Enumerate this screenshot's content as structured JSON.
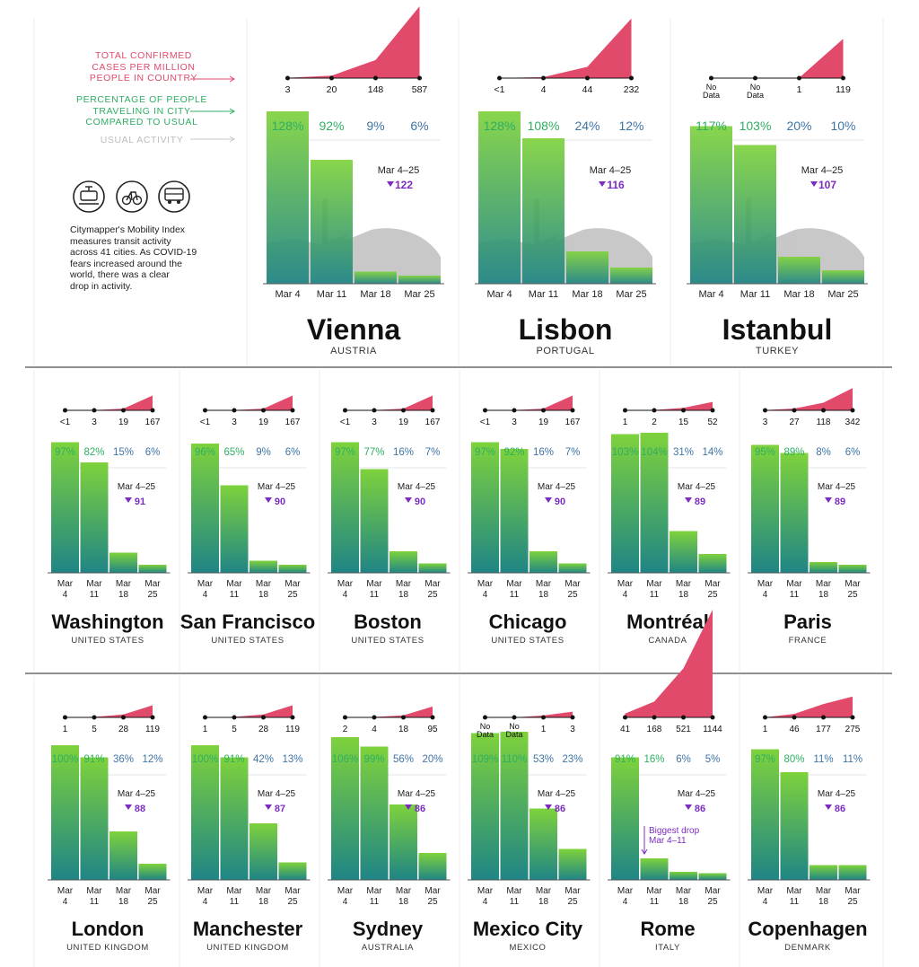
{
  "legend": {
    "cases": [
      "TOTAL CONFIRMED",
      "CASES PER MILLION",
      "PEOPLE IN COUNTRY"
    ],
    "travel": [
      "PERCENTAGE OF PEOPLE",
      "TRAVELING IN CITY",
      "COMPARED TO USUAL"
    ],
    "usual": "USUAL ACTIVITY",
    "description": [
      "Citymapper's Mobility Index",
      "measures transit activity",
      "across 41 cities. As COVID-19",
      "fears increased around the",
      "world, there was a clear",
      "drop in activity."
    ],
    "icons": [
      "tram-icon",
      "bicycle-icon",
      "bus-icon"
    ]
  },
  "colors": {
    "cases": "#e24a6c",
    "bar_top": "#7ed23c",
    "bar_bottom": "#1f8585",
    "drop": "#7b2cbf",
    "pct_green": "#2fae63",
    "pct_blue": "#3f74a5"
  },
  "chart_data": {
    "type": "bar",
    "description": "Citymapper Mobility Index: % of usual transit activity per week, with total confirmed COVID-19 cases per million people in country",
    "categories": [
      "Mar 4",
      "Mar 11",
      "Mar 18",
      "Mar 25"
    ],
    "change_label": "Mar 4–25",
    "cities": [
      {
        "city": "Vienna",
        "country": "AUSTRIA",
        "cases": [
          "3",
          "20",
          "148",
          "587"
        ],
        "cases_values": [
          3,
          20,
          148,
          587
        ],
        "pct": [
          128,
          92,
          9,
          6
        ],
        "drop": 122
      },
      {
        "city": "Lisbon",
        "country": "PORTUGAL",
        "cases": [
          "<1",
          "4",
          "44",
          "232"
        ],
        "cases_values": [
          0.5,
          4,
          44,
          232
        ],
        "pct": [
          128,
          108,
          24,
          12
        ],
        "drop": 116
      },
      {
        "city": "Istanbul",
        "country": "TURKEY",
        "cases": [
          "No Data",
          "No Data",
          "1",
          "119"
        ],
        "cases_values": [
          0,
          0,
          1,
          119
        ],
        "pct": [
          117,
          103,
          20,
          10
        ],
        "drop": 107
      },
      {
        "city": "Washington",
        "country": "UNITED STATES",
        "cases": [
          "<1",
          "3",
          "19",
          "167"
        ],
        "cases_values": [
          0.5,
          3,
          19,
          167
        ],
        "pct": [
          97,
          82,
          15,
          6
        ],
        "drop": 91
      },
      {
        "city": "San Francisco",
        "country": "UNITED STATES",
        "cases": [
          "<1",
          "3",
          "19",
          "167"
        ],
        "cases_values": [
          0.5,
          3,
          19,
          167
        ],
        "pct": [
          96,
          65,
          9,
          6
        ],
        "drop": 90
      },
      {
        "city": "Boston",
        "country": "UNITED STATES",
        "cases": [
          "<1",
          "3",
          "19",
          "167"
        ],
        "cases_values": [
          0.5,
          3,
          19,
          167
        ],
        "pct": [
          97,
          77,
          16,
          7
        ],
        "drop": 90
      },
      {
        "city": "Chicago",
        "country": "UNITED STATES",
        "cases": [
          "<1",
          "3",
          "19",
          "167"
        ],
        "cases_values": [
          0.5,
          3,
          19,
          167
        ],
        "pct": [
          97,
          92,
          16,
          7
        ],
        "drop": 90
      },
      {
        "city": "Montréal",
        "country": "CANADA",
        "cases": [
          "1",
          "2",
          "15",
          "52"
        ],
        "cases_values": [
          1,
          2,
          15,
          52
        ],
        "pct": [
          103,
          104,
          31,
          14
        ],
        "drop": 89
      },
      {
        "city": "Paris",
        "country": "FRANCE",
        "cases": [
          "3",
          "27",
          "118",
          "342"
        ],
        "cases_values": [
          3,
          27,
          118,
          342
        ],
        "pct": [
          95,
          89,
          8,
          6
        ],
        "drop": 89
      },
      {
        "city": "London",
        "country": "UNITED KINGDOM",
        "cases": [
          "1",
          "5",
          "28",
          "119"
        ],
        "cases_values": [
          1,
          5,
          28,
          119
        ],
        "pct": [
          100,
          91,
          36,
          12
        ],
        "drop": 88
      },
      {
        "city": "Manchester",
        "country": "UNITED KINGDOM",
        "cases": [
          "1",
          "5",
          "28",
          "119"
        ],
        "cases_values": [
          1,
          5,
          28,
          119
        ],
        "pct": [
          100,
          91,
          42,
          13
        ],
        "drop": 87
      },
      {
        "city": "Sydney",
        "country": "AUSTRALIA",
        "cases": [
          "2",
          "4",
          "18",
          "95"
        ],
        "cases_values": [
          2,
          4,
          18,
          95
        ],
        "pct": [
          106,
          99,
          56,
          20
        ],
        "drop": 86
      },
      {
        "city": "Mexico City",
        "country": "MEXICO",
        "cases": [
          "No Data",
          "No Data",
          "1",
          "3"
        ],
        "cases_values": [
          0,
          0,
          1,
          3
        ],
        "pct": [
          109,
          110,
          53,
          23
        ],
        "drop": 86
      },
      {
        "city": "Rome",
        "country": "ITALY",
        "cases": [
          "41",
          "168",
          "521",
          "1144"
        ],
        "cases_values": [
          41,
          168,
          521,
          1144
        ],
        "pct": [
          91,
          16,
          6,
          5
        ],
        "drop": 86,
        "annotation": [
          "Biggest drop",
          "Mar 4–11"
        ]
      },
      {
        "city": "Copenhagen",
        "country": "DENMARK",
        "cases": [
          "1",
          "46",
          "177",
          "275"
        ],
        "cases_values": [
          1,
          46,
          177,
          275
        ],
        "pct": [
          97,
          80,
          11,
          11
        ],
        "drop": 86
      }
    ]
  }
}
